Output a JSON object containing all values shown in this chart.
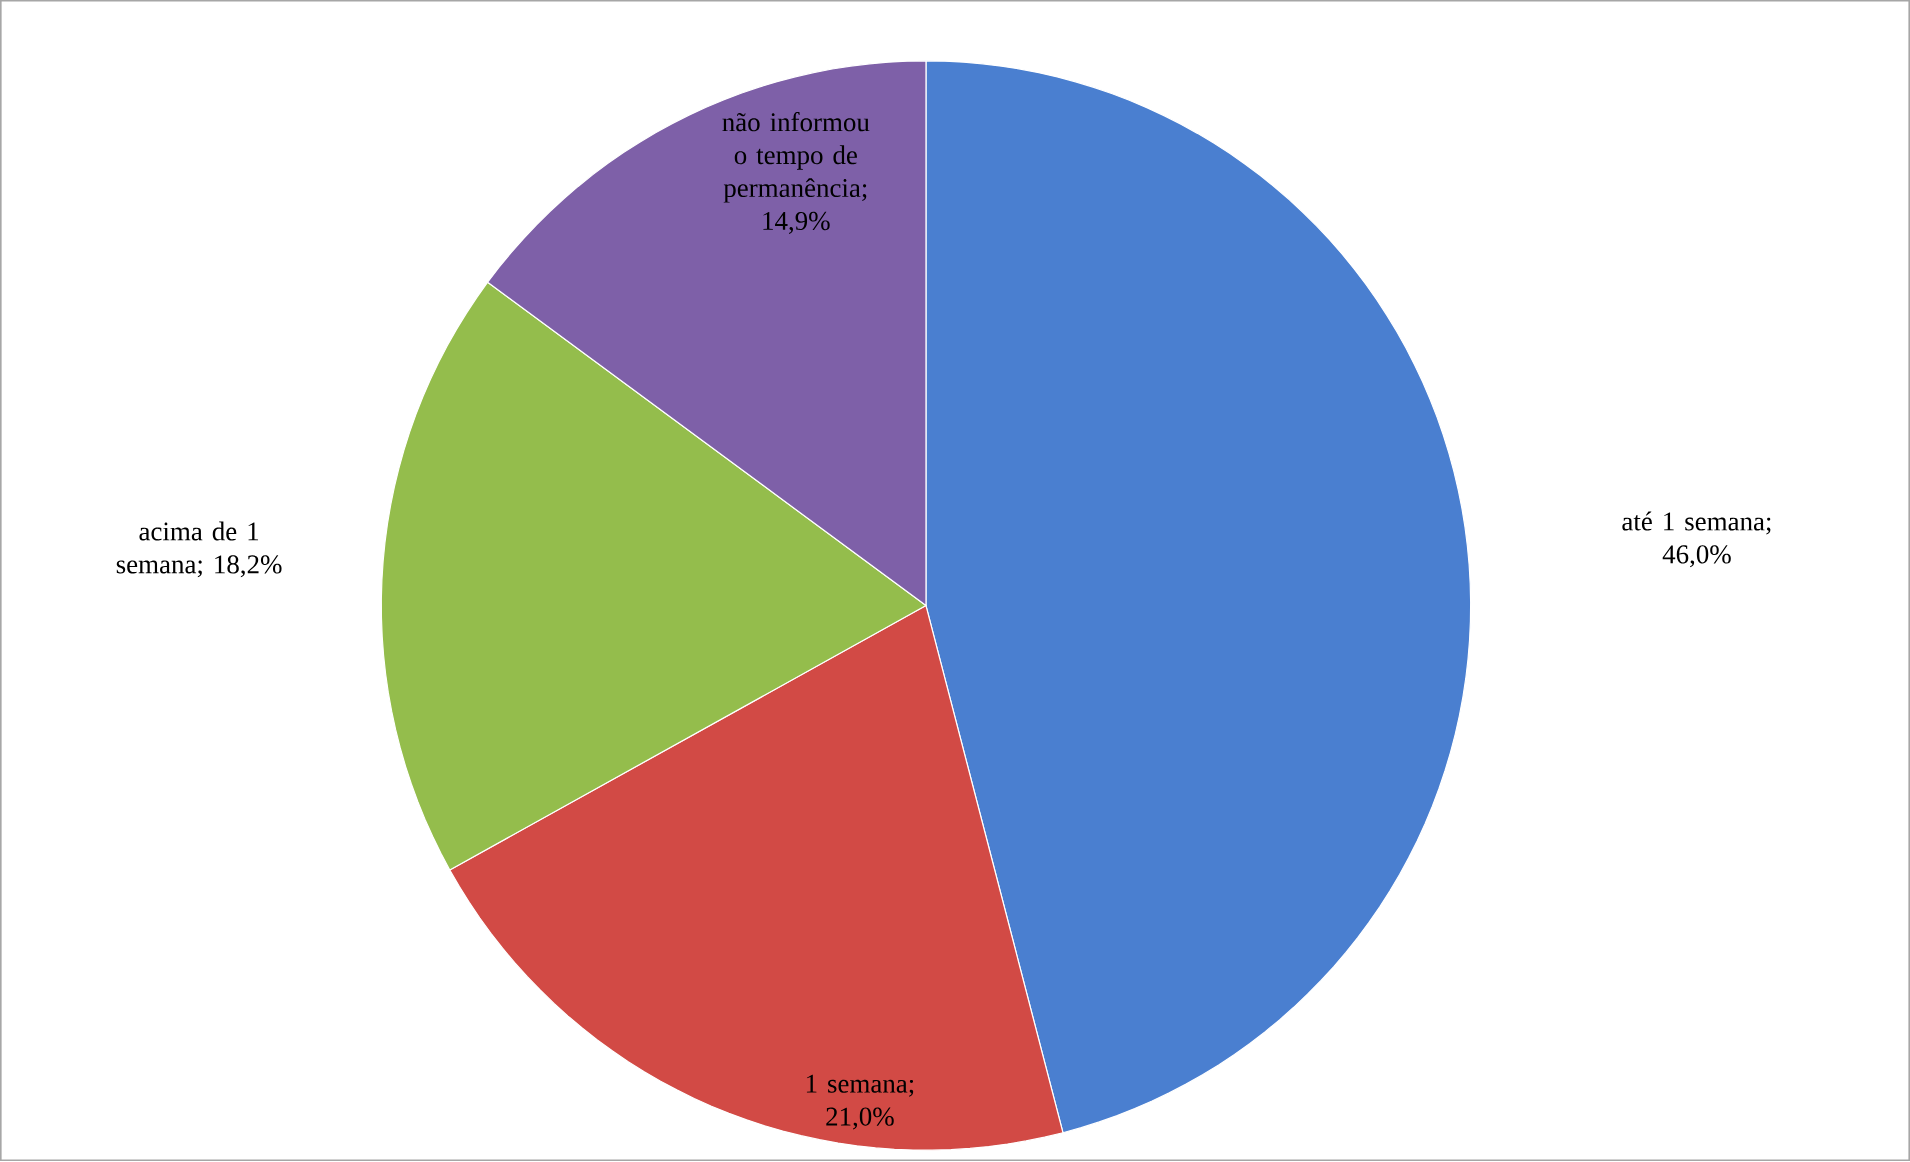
{
  "chart_data": {
    "type": "pie",
    "categories": [
      "até 1 semana",
      "1 semana",
      "acima de 1 semana",
      "não informou o tempo de permanência"
    ],
    "values": [
      46.0,
      21.0,
      18.2,
      14.9
    ],
    "value_labels": [
      "; 46,0%",
      "; 21,0%",
      "; 18,2%",
      "; 14,9%"
    ],
    "colors": [
      "#4a7fd0",
      "#d24a45",
      "#94bd4c",
      "#7e60a8"
    ]
  }
}
